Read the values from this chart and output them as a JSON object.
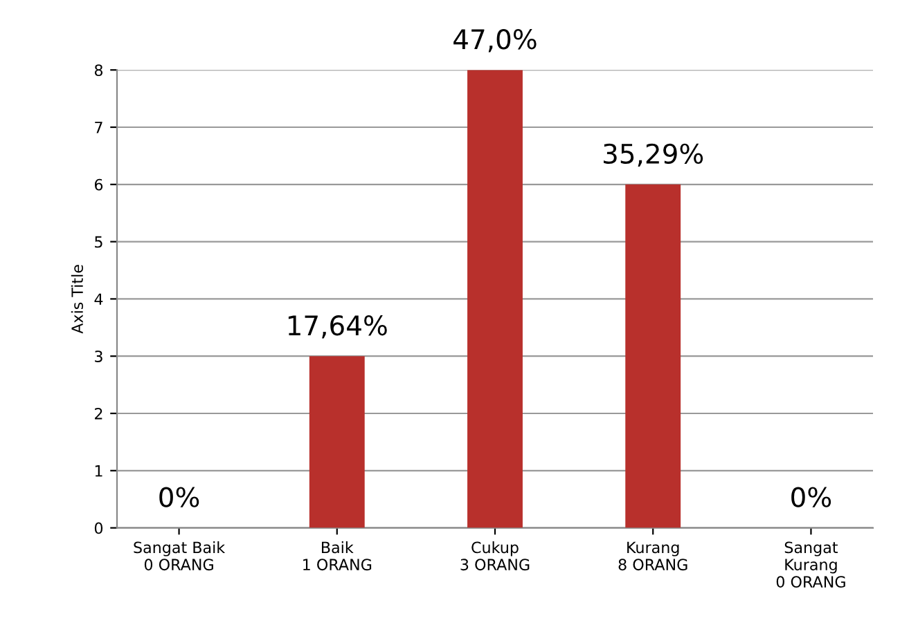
{
  "chart_data": {
    "type": "bar",
    "ylabel": "Axis Title",
    "categories": [
      "Sangat Baik\n0 ORANG",
      "Baik\n1 ORANG",
      "Cukup\n3 ORANG",
      "Kurang\n8 ORANG",
      "Sangat\nKurang\n0 ORANG"
    ],
    "values": [
      0,
      3,
      8,
      6,
      0
    ],
    "annotations": [
      {
        "text": "0%",
        "x": "Sangat Baik\n0 ORANG",
        "y": 0
      },
      {
        "text": "17,64%",
        "x": "Baik\n1 ORANG",
        "y": 3
      },
      {
        "text": "47,0%",
        "x": "Cukup\n3 ORANG",
        "y": 8
      },
      {
        "text": "35,29%",
        "x": "Kurang\n8 ORANG",
        "y": 6
      },
      {
        "text": "0%",
        "x": "Sangat\nKurang\n0 ORANG",
        "y": 0
      }
    ],
    "color": "#b8302c",
    "ylim": [
      0,
      8
    ],
    "yticks": [
      0,
      1,
      2,
      3,
      4,
      5,
      6,
      7,
      8
    ],
    "grid": "y"
  }
}
